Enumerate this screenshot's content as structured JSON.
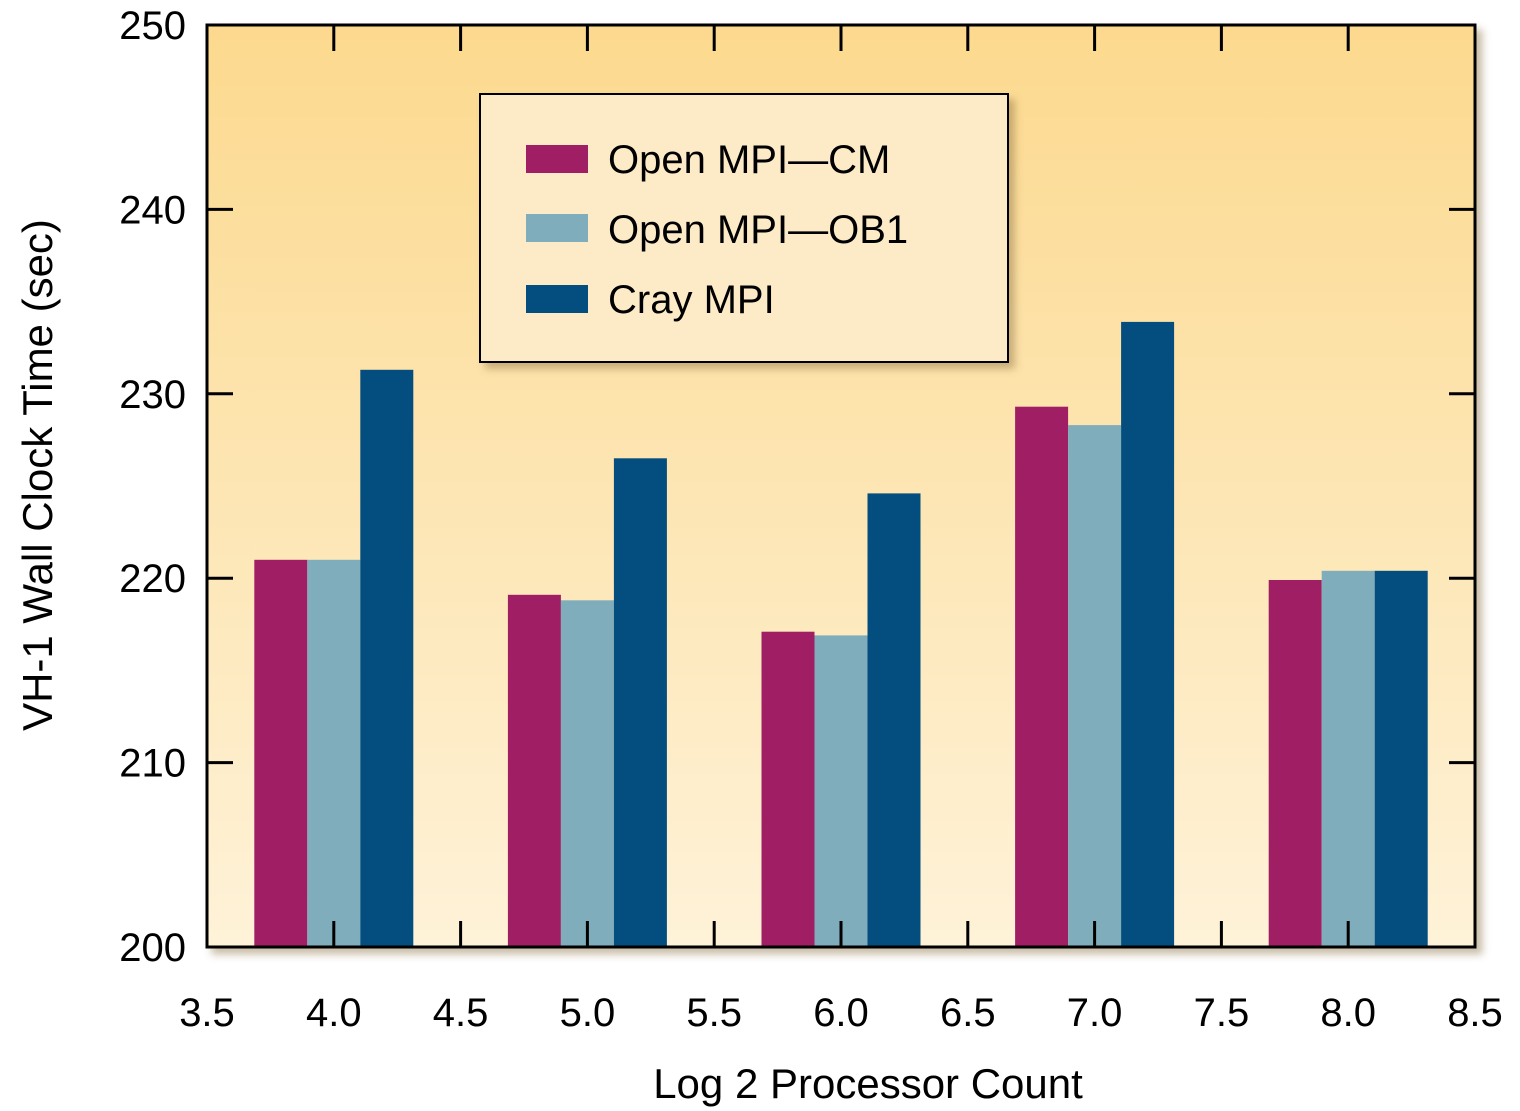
{
  "chart_data": {
    "type": "bar",
    "title": "",
    "xlabel": "Log 2 Processor Count",
    "ylabel": "VH-1 Wall Clock Time (sec)",
    "xlim": [
      3.5,
      8.5
    ],
    "ylim": [
      200,
      250
    ],
    "x_ticks": [
      "3.5",
      "4.0",
      "4.5",
      "5.0",
      "5.5",
      "6.0",
      "6.5",
      "7.0",
      "7.5",
      "8.0",
      "8.5"
    ],
    "y_ticks": [
      "200",
      "210",
      "220",
      "230",
      "240",
      "250"
    ],
    "x": [
      4.0,
      5.0,
      6.0,
      7.0,
      8.0
    ],
    "series": [
      {
        "name": "Open MPI—CM",
        "values": [
          221.0,
          219.1,
          217.1,
          229.3,
          219.9
        ]
      },
      {
        "name": "Open MPI—OB1",
        "values": [
          221.0,
          218.8,
          216.9,
          228.3,
          220.4
        ]
      },
      {
        "name": "Cray MPI",
        "values": [
          231.3,
          226.5,
          224.6,
          233.9,
          220.4
        ]
      }
    ],
    "legend_position": "top-left",
    "grid": false
  },
  "colors": {
    "series": [
      "#a01f64",
      "#7fadbc",
      "#034e7e"
    ],
    "background_top": "#fcd98e",
    "background_bottom": "#fef2d8",
    "legend_bg": "#fdebc8"
  }
}
